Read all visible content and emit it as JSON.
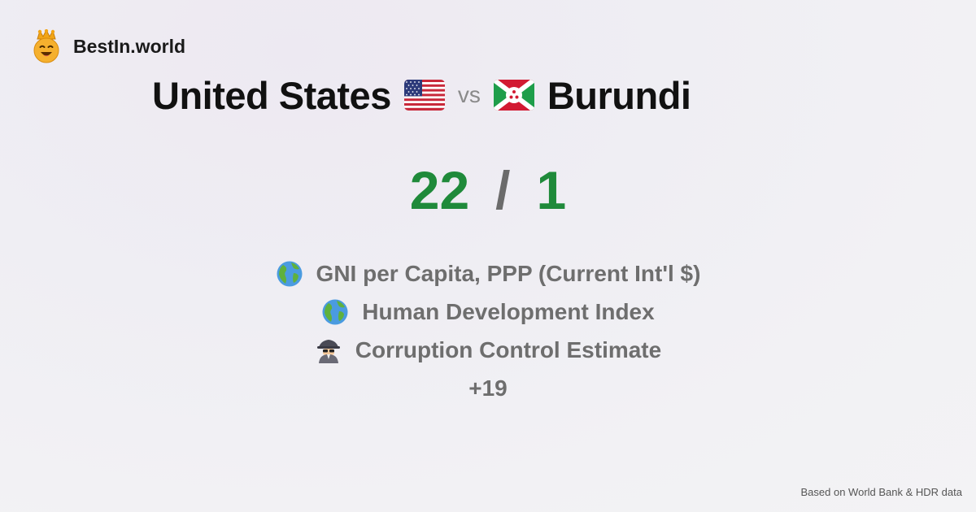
{
  "brand": {
    "name": "BestIn.world",
    "logo_icon": "crown-smiley-icon"
  },
  "comparison": {
    "country_a": "United States",
    "country_a_flag": "us-flag-icon",
    "vs_label": "vs",
    "country_b": "Burundi",
    "country_b_flag": "burundi-flag-icon"
  },
  "score": {
    "a": "22",
    "separator": "/",
    "b": "1"
  },
  "metrics": [
    {
      "icon": "globe-icon",
      "label": "GNI per Capita, PPP (Current Int'l $)"
    },
    {
      "icon": "globe-icon",
      "label": "Human Development Index"
    },
    {
      "icon": "detective-icon",
      "label": "Corruption Control Estimate"
    }
  ],
  "more_label": "+19",
  "footer": {
    "source": "Based on World Bank & HDR data"
  },
  "colors": {
    "score_green": "#1f8a3a",
    "muted_text": "#6e6e6e",
    "title_text": "#111111"
  }
}
